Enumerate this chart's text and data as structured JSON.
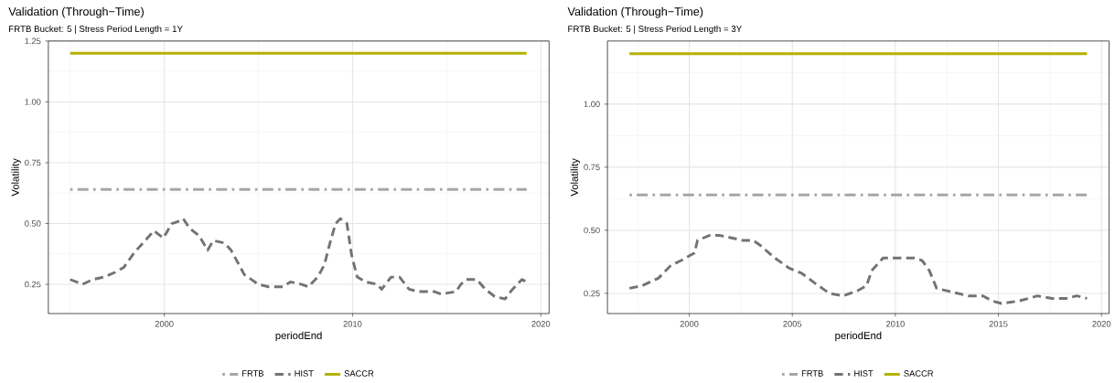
{
  "chart_data": [
    {
      "type": "line",
      "title": "Validation (Through−Time)",
      "subtitle": "FRTB Bucket: 5 | Stress Period Length = 1Y",
      "xlabel": "periodEnd",
      "ylabel": "Volatility",
      "xlim": [
        1993.84,
        2020.44
      ],
      "ylim": [
        0.13,
        1.25
      ],
      "xticks": [
        2000,
        2010,
        2020
      ],
      "yticks": [
        {
          "value": 0.25,
          "label": "0.25"
        },
        {
          "value": 0.5,
          "label": "0.50"
        },
        {
          "value": 0.75,
          "label": "0.75"
        },
        {
          "value": 1.0,
          "label": "1.00"
        },
        {
          "value": 1.25,
          "label": "1.25"
        }
      ],
      "grid": true,
      "legend": "bottom",
      "series": [
        {
          "name": "FRTB",
          "color": "#a6a6a6",
          "line_style": "dotted",
          "x": [
            1995.0,
            2019.25
          ],
          "values": [
            0.64,
            0.64
          ]
        },
        {
          "name": "HIST",
          "color": "#737373",
          "line_style": "dashed",
          "x": [
            1995.0,
            1995.65,
            1996.2,
            1996.8,
            1997.4,
            1997.85,
            1998.4,
            1999.1,
            1999.45,
            1999.95,
            2000.4,
            2000.8,
            2001.0,
            2001.35,
            2001.85,
            2002.3,
            2002.6,
            2003.2,
            2003.55,
            2004.25,
            2005.0,
            2005.55,
            2006.3,
            2006.7,
            2007.3,
            2007.65,
            2008.15,
            2008.5,
            2008.8,
            2009.1,
            2009.35,
            2009.7,
            2009.95,
            2010.25,
            2010.7,
            2011.3,
            2011.55,
            2012.05,
            2012.5,
            2013.0,
            2013.5,
            2014.35,
            2014.7,
            2015.5,
            2015.75,
            2016.05,
            2016.6,
            2017.05,
            2017.55,
            2018.1,
            2018.5,
            2019.0,
            2019.25
          ],
          "values": [
            0.27,
            0.25,
            0.27,
            0.28,
            0.3,
            0.32,
            0.38,
            0.44,
            0.47,
            0.44,
            0.5,
            0.51,
            0.52,
            0.48,
            0.45,
            0.39,
            0.43,
            0.42,
            0.39,
            0.29,
            0.25,
            0.24,
            0.24,
            0.26,
            0.25,
            0.24,
            0.28,
            0.33,
            0.42,
            0.5,
            0.52,
            0.5,
            0.37,
            0.28,
            0.26,
            0.25,
            0.23,
            0.28,
            0.28,
            0.23,
            0.22,
            0.22,
            0.21,
            0.22,
            0.25,
            0.27,
            0.27,
            0.23,
            0.2,
            0.19,
            0.23,
            0.27,
            0.26
          ]
        },
        {
          "name": "SACCR",
          "color": "#b5b000",
          "line_style": "solid",
          "x": [
            1995.0,
            2019.25
          ],
          "values": [
            1.2,
            1.2
          ]
        }
      ]
    },
    {
      "type": "line",
      "title": "Validation (Through−Time)",
      "subtitle": "FRTB Bucket: 5 | Stress Period Length = 3Y",
      "xlabel": "periodEnd",
      "ylabel": "Volatility",
      "xlim": [
        1996.03,
        2020.37
      ],
      "ylim": [
        0.17,
        1.25
      ],
      "xticks": [
        2000,
        2005,
        2010,
        2015,
        2020
      ],
      "yticks": [
        {
          "value": 0.25,
          "label": "0.25"
        },
        {
          "value": 0.5,
          "label": "0.50"
        },
        {
          "value": 0.75,
          "label": "0.75"
        },
        {
          "value": 1.0,
          "label": "1.00"
        }
      ],
      "grid": true,
      "legend": "bottom",
      "series": [
        {
          "name": "FRTB",
          "color": "#a6a6a6",
          "line_style": "dotted",
          "x": [
            1997.1,
            2019.3
          ],
          "values": [
            0.64,
            0.64
          ]
        },
        {
          "name": "HIST",
          "color": "#737373",
          "line_style": "dashed",
          "x": [
            1997.1,
            1997.7,
            1998.5,
            1999.1,
            1999.6,
            2000.25,
            2000.4,
            2001.0,
            2001.45,
            2002.05,
            2002.6,
            2003.1,
            2003.45,
            2004.15,
            2004.85,
            2005.45,
            2006.1,
            2006.8,
            2007.45,
            2008.15,
            2008.6,
            2008.85,
            2009.4,
            2010.1,
            2010.95,
            2011.3,
            2011.65,
            2012.0,
            2012.5,
            2013.55,
            2014.25,
            2014.7,
            2015.15,
            2016.0,
            2016.9,
            2017.6,
            2018.3,
            2018.8,
            2019.3
          ],
          "values": [
            0.27,
            0.28,
            0.31,
            0.36,
            0.38,
            0.41,
            0.46,
            0.48,
            0.48,
            0.47,
            0.46,
            0.46,
            0.44,
            0.39,
            0.35,
            0.33,
            0.29,
            0.25,
            0.24,
            0.26,
            0.28,
            0.34,
            0.39,
            0.39,
            0.39,
            0.38,
            0.34,
            0.27,
            0.26,
            0.24,
            0.24,
            0.22,
            0.21,
            0.22,
            0.24,
            0.23,
            0.23,
            0.24,
            0.23
          ]
        },
        {
          "name": "SACCR",
          "color": "#b5b000",
          "line_style": "solid",
          "x": [
            1997.1,
            2019.3
          ],
          "values": [
            1.2,
            1.2
          ]
        }
      ]
    }
  ]
}
